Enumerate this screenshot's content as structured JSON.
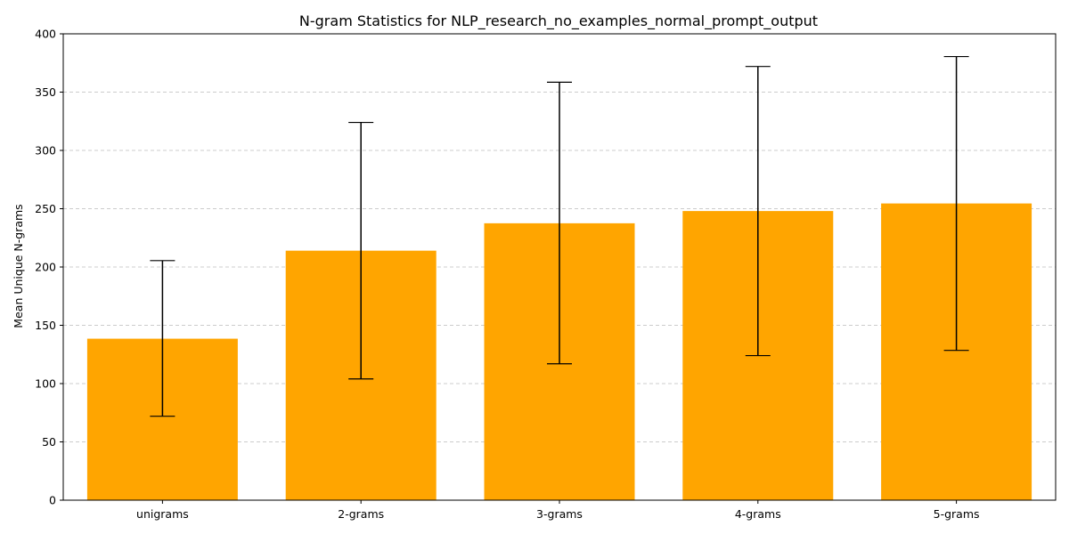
{
  "chart_data": {
    "type": "bar",
    "title": "N-gram Statistics for NLP_research_no_examples_normal_prompt_output",
    "xlabel": "",
    "ylabel": "Mean Unique N-grams",
    "categories": [
      "unigrams",
      "2-grams",
      "3-grams",
      "4-grams",
      "5-grams"
    ],
    "values": [
      138.5,
      214,
      237.5,
      248,
      254.5
    ],
    "error_low": [
      72,
      104,
      117,
      124,
      128.5
    ],
    "error_high": [
      205.5,
      324,
      358.5,
      372,
      380.5
    ],
    "ylim": [
      0,
      400
    ],
    "yticks": [
      0,
      50,
      100,
      150,
      200,
      250,
      300,
      350,
      400
    ],
    "grid": "y-dashed",
    "legend": "none",
    "bar_color": "#ffa500",
    "error_color": "#000000"
  }
}
